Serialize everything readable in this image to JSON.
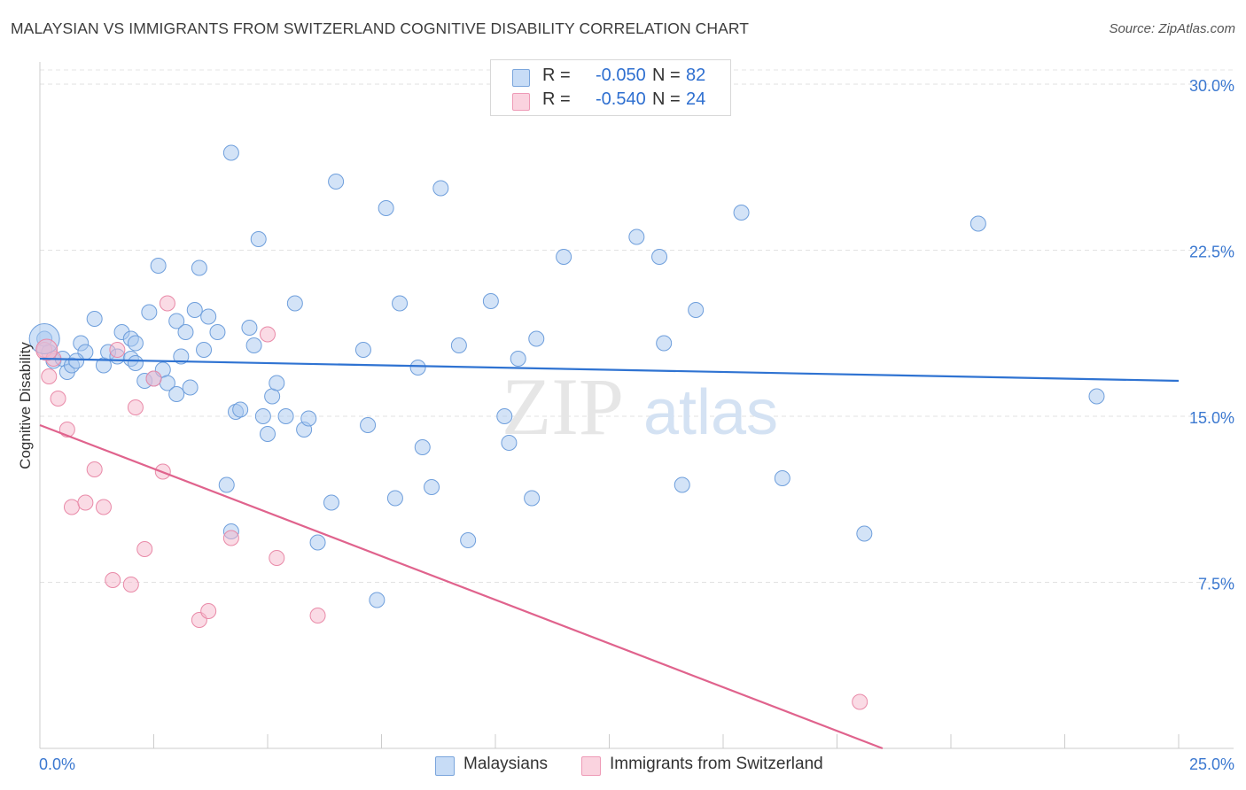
{
  "title": "MALAYSIAN VS IMMIGRANTS FROM SWITZERLAND COGNITIVE DISABILITY CORRELATION CHART",
  "source": "Source: ZipAtlas.com",
  "watermark": {
    "zip": "ZIP",
    "atlas": "atlas"
  },
  "legend_top": [
    {
      "r_label": "R =",
      "r_value": "-0.050",
      "n_label": "N =",
      "n_value": "82",
      "color": "#a8c8f0"
    },
    {
      "r_label": "R =",
      "r_value": "-0.540",
      "n_label": "N =",
      "n_value": "24",
      "color": "#f5b8cc"
    }
  ],
  "legend_bottom": [
    {
      "label": "Malaysians",
      "color": "#a8c8f0"
    },
    {
      "label": "Immigrants from Switzerland",
      "color": "#f5b8cc"
    }
  ],
  "chart_data": {
    "type": "scatter",
    "title": "MALAYSIAN VS IMMIGRANTS FROM SWITZERLAND COGNITIVE DISABILITY CORRELATION CHART",
    "xlabel": "",
    "ylabel": "Cognitive Disability",
    "xlim": [
      0,
      25
    ],
    "ylim": [
      0,
      31
    ],
    "x_tick_labels": {
      "0": "0.0%",
      "25": "25.0%"
    },
    "y_ticks": [
      7.5,
      15.0,
      22.5,
      30.0
    ],
    "y_tick_labels": [
      "7.5%",
      "15.0%",
      "22.5%",
      "30.0%"
    ],
    "grid": true,
    "series": [
      {
        "name": "Malaysians",
        "color": "#a8c8f0",
        "edge": "#6f9fdc",
        "trend": {
          "x": [
            0,
            25
          ],
          "y": [
            17.6,
            16.6
          ],
          "color": "#2f73d2"
        },
        "points": [
          [
            0.1,
            18.5
          ],
          [
            0.3,
            17.5
          ],
          [
            0.5,
            17.6
          ],
          [
            0.6,
            17.0
          ],
          [
            0.7,
            17.3
          ],
          [
            0.9,
            18.3
          ],
          [
            1.0,
            17.9
          ],
          [
            1.2,
            19.4
          ],
          [
            1.4,
            17.3
          ],
          [
            1.5,
            17.9
          ],
          [
            1.7,
            17.7
          ],
          [
            1.8,
            18.8
          ],
          [
            2.0,
            18.5
          ],
          [
            2.0,
            17.6
          ],
          [
            2.1,
            18.3
          ],
          [
            2.3,
            16.6
          ],
          [
            2.4,
            19.7
          ],
          [
            2.5,
            16.7
          ],
          [
            2.6,
            21.8
          ],
          [
            2.7,
            17.1
          ],
          [
            2.8,
            16.5
          ],
          [
            3.0,
            19.3
          ],
          [
            3.1,
            17.7
          ],
          [
            3.2,
            18.8
          ],
          [
            3.3,
            16.3
          ],
          [
            3.4,
            19.8
          ],
          [
            3.5,
            21.7
          ],
          [
            3.6,
            18.0
          ],
          [
            3.7,
            19.5
          ],
          [
            3.9,
            18.8
          ],
          [
            4.1,
            11.9
          ],
          [
            4.2,
            9.8
          ],
          [
            4.2,
            26.9
          ],
          [
            4.3,
            15.2
          ],
          [
            4.4,
            15.3
          ],
          [
            4.6,
            19.0
          ],
          [
            4.7,
            18.2
          ],
          [
            4.8,
            23.0
          ],
          [
            4.9,
            15.0
          ],
          [
            5.0,
            14.2
          ],
          [
            5.1,
            15.9
          ],
          [
            5.2,
            16.5
          ],
          [
            5.4,
            15.0
          ],
          [
            5.6,
            20.1
          ],
          [
            5.8,
            14.4
          ],
          [
            5.9,
            14.9
          ],
          [
            6.1,
            9.3
          ],
          [
            6.4,
            11.1
          ],
          [
            6.5,
            25.6
          ],
          [
            7.1,
            18.0
          ],
          [
            7.2,
            14.6
          ],
          [
            7.4,
            6.7
          ],
          [
            7.6,
            24.4
          ],
          [
            7.8,
            11.3
          ],
          [
            7.9,
            20.1
          ],
          [
            8.3,
            17.2
          ],
          [
            8.4,
            13.6
          ],
          [
            8.6,
            11.8
          ],
          [
            8.8,
            25.3
          ],
          [
            9.2,
            18.2
          ],
          [
            9.4,
            9.4
          ],
          [
            9.9,
            20.2
          ],
          [
            10.2,
            15.0
          ],
          [
            10.3,
            13.8
          ],
          [
            10.5,
            17.6
          ],
          [
            10.8,
            11.3
          ],
          [
            10.9,
            18.5
          ],
          [
            11.5,
            22.2
          ],
          [
            13.1,
            23.1
          ],
          [
            13.6,
            22.2
          ],
          [
            13.7,
            18.3
          ],
          [
            14.1,
            11.9
          ],
          [
            14.4,
            19.8
          ],
          [
            15.4,
            24.2
          ],
          [
            16.3,
            12.2
          ],
          [
            18.1,
            9.7
          ],
          [
            20.6,
            23.7
          ],
          [
            23.2,
            15.9
          ],
          [
            0.2,
            17.9
          ],
          [
            2.1,
            17.4
          ],
          [
            0.8,
            17.5
          ],
          [
            3.0,
            16.0
          ]
        ]
      },
      {
        "name": "Immigrants from Switzerland",
        "color": "#f5b8cc",
        "edge": "#e98aa8",
        "trend": {
          "x": [
            0,
            18.5
          ],
          "y": [
            14.6,
            0
          ],
          "color": "#e0638d"
        },
        "points": [
          [
            0.1,
            18.0
          ],
          [
            0.2,
            16.8
          ],
          [
            0.3,
            17.6
          ],
          [
            0.4,
            15.8
          ],
          [
            0.6,
            14.4
          ],
          [
            0.7,
            10.9
          ],
          [
            1.0,
            11.1
          ],
          [
            1.2,
            12.6
          ],
          [
            1.4,
            10.9
          ],
          [
            1.6,
            7.6
          ],
          [
            1.7,
            18.0
          ],
          [
            2.0,
            7.4
          ],
          [
            2.1,
            15.4
          ],
          [
            2.3,
            9.0
          ],
          [
            2.5,
            16.7
          ],
          [
            2.7,
            12.5
          ],
          [
            2.8,
            20.1
          ],
          [
            3.5,
            5.8
          ],
          [
            3.7,
            6.2
          ],
          [
            4.2,
            9.5
          ],
          [
            5.0,
            18.7
          ],
          [
            5.2,
            8.6
          ],
          [
            6.1,
            6.0
          ],
          [
            18.0,
            2.1
          ]
        ]
      }
    ]
  }
}
